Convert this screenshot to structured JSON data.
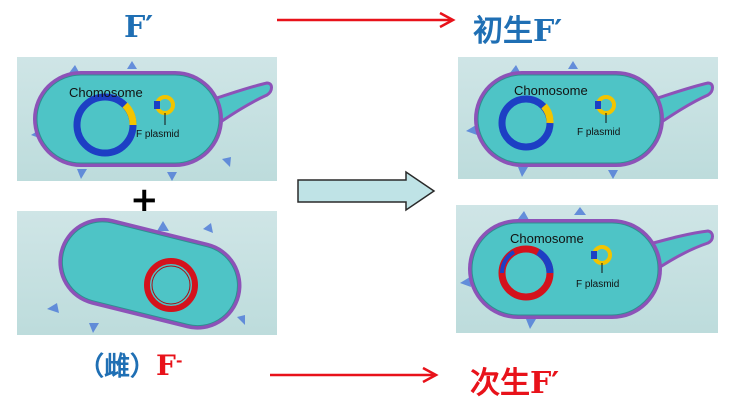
{
  "labels": {
    "donor": "F′",
    "recipient_prefix": "（雌）",
    "recipient": "F",
    "recipient_sup": "-",
    "primary": "初生F′",
    "secondary": "次生F′",
    "plus": "+"
  },
  "cell_text": {
    "chromosome": "Chomosome",
    "chromosome_b": "Chomosome",
    "chromosome_c": "Chomosome",
    "plasmid": "F plasmid",
    "plasmid_b": "F plasmid",
    "plasmid_c": "F plasmid"
  },
  "colors": {
    "donor_label": "#1f6fb4",
    "result_label": "#1f6fb4",
    "recipient_label": "#e8121a",
    "arrow_red": "#e8121a",
    "cytoplasm": "#4ec4c6",
    "membrane": "#8d52b8",
    "chromosome_blue": "#1d3fc4",
    "chromosome_red": "#d4121c",
    "plasmid_yellow": "#f2c400"
  }
}
